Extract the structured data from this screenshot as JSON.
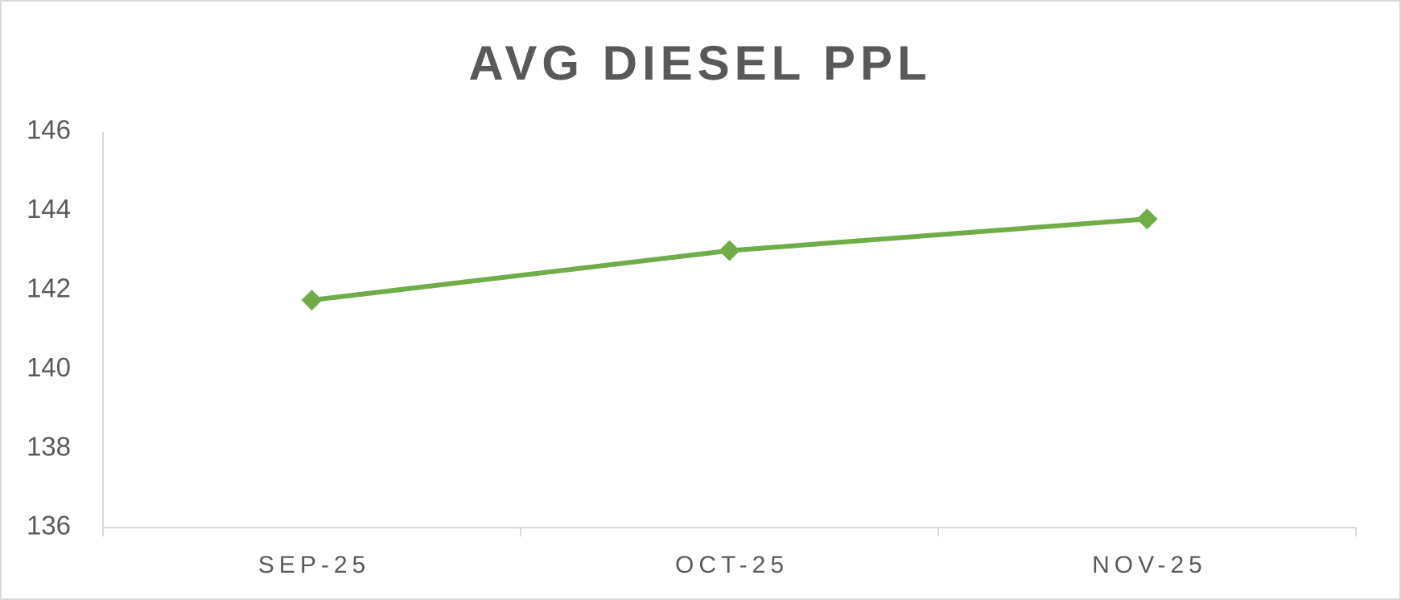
{
  "chart_data": {
    "type": "line",
    "title": "AVG DIESEL PPL",
    "categories": [
      "SEP-25",
      "OCT-25",
      "NOV-25"
    ],
    "series": [
      {
        "name": "AVG DIESEL PPL",
        "color": "#70ad47",
        "values": [
          141.75,
          143.0,
          143.8
        ]
      }
    ],
    "ylim": [
      136,
      146
    ],
    "yticks": [
      136,
      138,
      140,
      142,
      144,
      146
    ],
    "grid": false
  }
}
